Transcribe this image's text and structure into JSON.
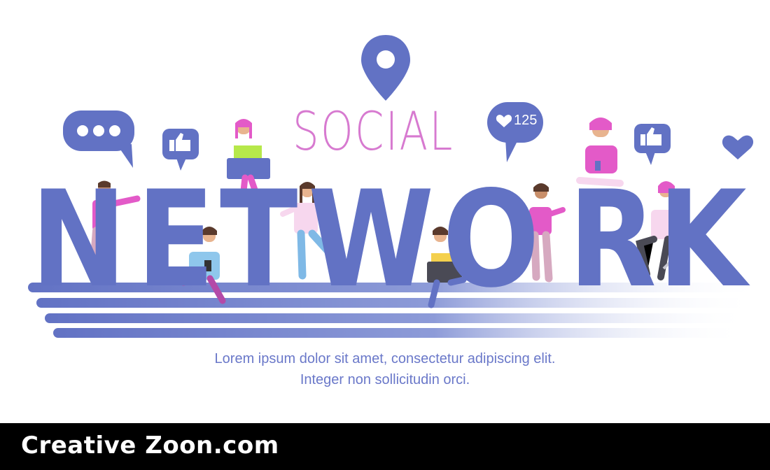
{
  "banner": {
    "word_social": "SOCIAL",
    "word_network": [
      "N",
      "E",
      "T",
      "W",
      "O",
      "R",
      "K"
    ],
    "like_count": "125",
    "subtitle_line1": "Lorem ipsum dolor sit amet, consectetur adipiscing elit.",
    "subtitle_line2": "Integer non sollicitudin orci."
  },
  "footer": {
    "label": "Creative Zoon.com"
  },
  "colors": {
    "brand_blue": "#6272c4",
    "pink": "#d77ad0",
    "magenta_shirt": "#e35ac8",
    "footer_bg": "#000000"
  },
  "icons": [
    "location-pin-icon",
    "speech-bubble-dots-icon",
    "thumbs-up-icon",
    "heart-like-bubble-icon",
    "thumbs-up-icon-right",
    "heart-icon"
  ]
}
